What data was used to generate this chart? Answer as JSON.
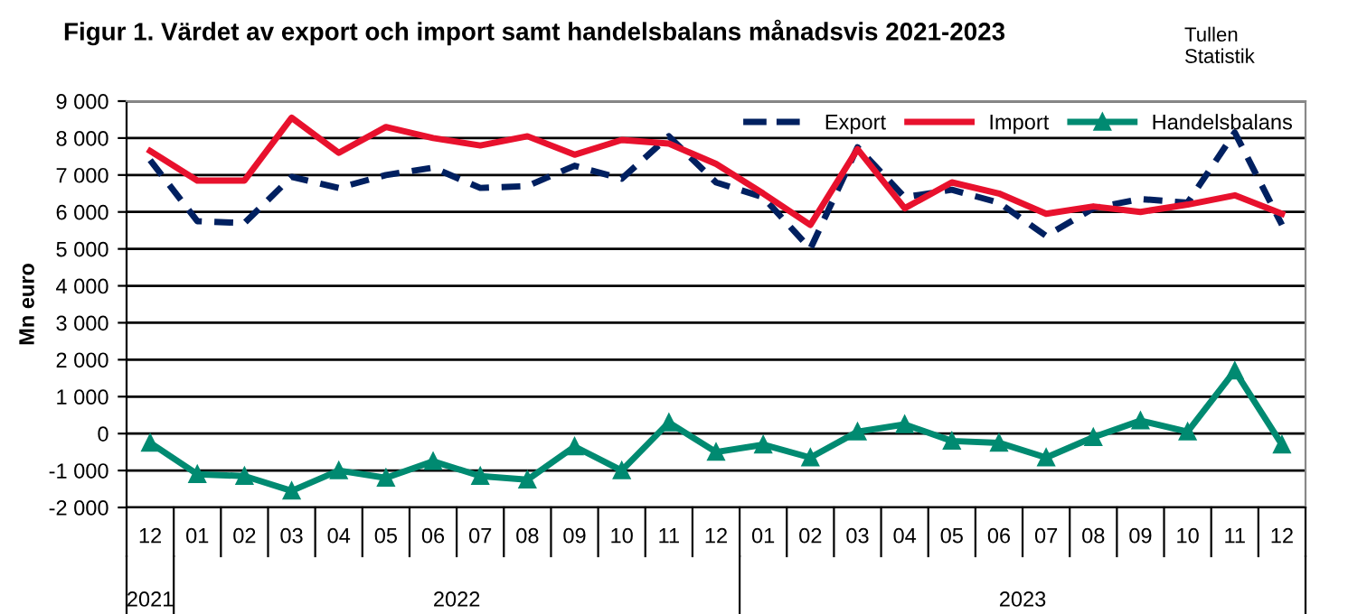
{
  "chart_data": {
    "type": "line",
    "title": "Figur 1. Värdet av export och import samt handelsbalans månadsvis 2021-2023",
    "ylabel": "Mn euro",
    "categories": [
      "12",
      "01",
      "02",
      "03",
      "04",
      "05",
      "06",
      "07",
      "08",
      "09",
      "10",
      "11",
      "12",
      "01",
      "02",
      "03",
      "04",
      "05",
      "06",
      "07",
      "08",
      "09",
      "10",
      "11",
      "12"
    ],
    "series": [
      {
        "name": "Export",
        "color": "#002060",
        "line_style": "dashed",
        "marker": "none",
        "values": [
          7400,
          5750,
          5700,
          6950,
          6650,
          7000,
          7200,
          6650,
          6700,
          7250,
          6900,
          8050,
          6800,
          6400,
          5000,
          7750,
          6400,
          6600,
          6250,
          5350,
          6100,
          6350,
          6250,
          8150,
          5650
        ]
      },
      {
        "name": "Import",
        "color": "#e8112d",
        "line_style": "solid",
        "marker": "none",
        "values": [
          7650,
          6850,
          6850,
          8550,
          7600,
          8300,
          8000,
          7800,
          8050,
          7550,
          7950,
          7850,
          7300,
          6500,
          5650,
          7700,
          6100,
          6800,
          6500,
          5950,
          6150,
          6000,
          6200,
          6450,
          5950
        ]
      },
      {
        "name": "Handelsbalans",
        "color": "#008a71",
        "line_style": "solid",
        "marker": "triangle",
        "values": [
          -250,
          -1100,
          -1150,
          -1550,
          -1000,
          -1200,
          -750,
          -1150,
          -1250,
          -350,
          -1000,
          300,
          -500,
          -300,
          -650,
          50,
          250,
          -200,
          -250,
          -650,
          -100,
          350,
          50,
          1700,
          -300
        ]
      }
    ],
    "ylim": [
      -2000,
      9000
    ],
    "yticks": [
      {
        "value": -2000,
        "label": "-2 000"
      },
      {
        "value": -1000,
        "label": "-1 000"
      },
      0,
      {
        "value": 1000,
        "label": "1 000"
      },
      {
        "value": 2000,
        "label": "2 000"
      },
      {
        "value": 3000,
        "label": "3 000"
      },
      {
        "value": 4000,
        "label": "4 000"
      },
      {
        "value": 5000,
        "label": "5 000"
      },
      {
        "value": 6000,
        "label": "6 000"
      },
      {
        "value": 7000,
        "label": "7 000"
      },
      {
        "value": 8000,
        "label": "8 000"
      },
      {
        "value": 9000,
        "label": "9 000"
      }
    ],
    "grid": "y",
    "legend": "top right",
    "annotations": [
      "Tullen\nStatistik",
      "2021",
      "2022",
      "2023"
    ]
  }
}
